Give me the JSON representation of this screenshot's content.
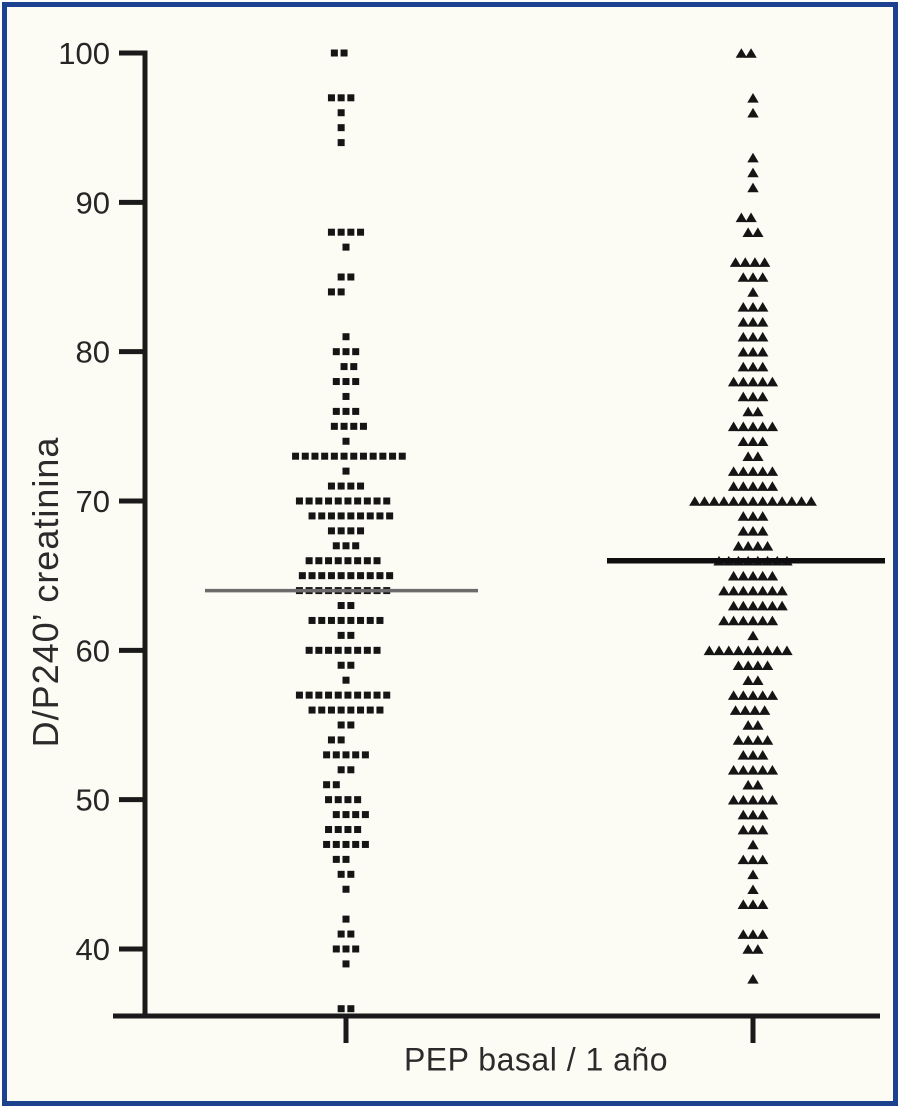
{
  "figure": {
    "border_color": "#1c418f",
    "background_color": "#fcfbf4",
    "ink_color": "#1a1a1a"
  },
  "chart_data": {
    "type": "scatter",
    "variant": "beeswarm-dot-plot",
    "title": "",
    "ylabel": "D/P240’ creatinina",
    "xlabel": "PEP basal / 1 año",
    "ylim": [
      35,
      101
    ],
    "yticks": [
      100,
      90,
      80,
      70,
      60,
      50,
      40
    ],
    "grid": false,
    "legend": "none",
    "series": [
      {
        "name": "PEP basal",
        "marker": "square",
        "color": "#151515",
        "median": 64,
        "median_color": "#6b6b6b",
        "rows_format": "[value, count, row_offset_in_dot_units]",
        "rows": [
          [
            100,
            2,
            -0.7
          ],
          [
            97,
            3,
            -0.5
          ],
          [
            96,
            1,
            -0.5
          ],
          [
            95,
            1,
            -0.5
          ],
          [
            94,
            1,
            -0.5
          ],
          [
            88,
            4,
            0
          ],
          [
            87,
            1,
            0
          ],
          [
            85,
            2,
            0
          ],
          [
            84,
            2,
            -1
          ],
          [
            81,
            1,
            0
          ],
          [
            80,
            3,
            0
          ],
          [
            79,
            2,
            0.3
          ],
          [
            78,
            3,
            0
          ],
          [
            77,
            1,
            0
          ],
          [
            76,
            3,
            0
          ],
          [
            75,
            4,
            0.3
          ],
          [
            74,
            1,
            0
          ],
          [
            73,
            12,
            0.3
          ],
          [
            72,
            1,
            0
          ],
          [
            71,
            4,
            0
          ],
          [
            70,
            10,
            -0.3
          ],
          [
            69,
            9,
            0.5
          ],
          [
            68,
            4,
            0
          ],
          [
            67,
            3,
            0
          ],
          [
            66,
            8,
            -0.3
          ],
          [
            65,
            10,
            0
          ],
          [
            64,
            10,
            -0.3
          ],
          [
            63,
            2,
            0
          ],
          [
            62,
            8,
            0
          ],
          [
            61,
            2,
            0
          ],
          [
            60,
            8,
            -0.3
          ],
          [
            59,
            2,
            0
          ],
          [
            58,
            1,
            0
          ],
          [
            57,
            10,
            -0.3
          ],
          [
            56,
            8,
            0
          ],
          [
            55,
            2,
            0
          ],
          [
            54,
            2,
            -1
          ],
          [
            53,
            5,
            0
          ],
          [
            52,
            2,
            0
          ],
          [
            51,
            2,
            -1.5
          ],
          [
            50,
            4,
            -0.3
          ],
          [
            49,
            4,
            0.5
          ],
          [
            48,
            4,
            -0.3
          ],
          [
            47,
            5,
            0
          ],
          [
            46,
            2,
            -0.5
          ],
          [
            45,
            2,
            0
          ],
          [
            44,
            1,
            0
          ],
          [
            42,
            1,
            0
          ],
          [
            41,
            2,
            0
          ],
          [
            40,
            3,
            0
          ],
          [
            39,
            1,
            0
          ],
          [
            36,
            2,
            0
          ]
        ]
      },
      {
        "name": "PEP 1 año",
        "marker": "triangle",
        "color": "#151515",
        "median": 66,
        "median_color": "#0e0e0e",
        "rows_format": "[value, count, row_offset_in_dot_units]",
        "rows": [
          [
            100,
            2,
            -0.7
          ],
          [
            97,
            1,
            0
          ],
          [
            96,
            1,
            0
          ],
          [
            93,
            1,
            0
          ],
          [
            92,
            1,
            0
          ],
          [
            91,
            1,
            0
          ],
          [
            89,
            2,
            -0.7
          ],
          [
            88,
            2,
            0
          ],
          [
            86,
            4,
            -0.3
          ],
          [
            85,
            3,
            0
          ],
          [
            84,
            1,
            0
          ],
          [
            83,
            3,
            0
          ],
          [
            82,
            3,
            0
          ],
          [
            81,
            3,
            0
          ],
          [
            80,
            3,
            0
          ],
          [
            79,
            3,
            0
          ],
          [
            78,
            5,
            0
          ],
          [
            77,
            3,
            0
          ],
          [
            76,
            2,
            0
          ],
          [
            75,
            5,
            0
          ],
          [
            74,
            3,
            0
          ],
          [
            73,
            2,
            0
          ],
          [
            72,
            5,
            0
          ],
          [
            71,
            5,
            0
          ],
          [
            70,
            13,
            0
          ],
          [
            69,
            3,
            0
          ],
          [
            68,
            3,
            0
          ],
          [
            67,
            4,
            0
          ],
          [
            66,
            8,
            0
          ],
          [
            65,
            5,
            0
          ],
          [
            64,
            7,
            0
          ],
          [
            63,
            6,
            0.5
          ],
          [
            62,
            6,
            -0.5
          ],
          [
            61,
            1,
            0
          ],
          [
            60,
            9,
            -0.5
          ],
          [
            59,
            4,
            0
          ],
          [
            58,
            2,
            0
          ],
          [
            57,
            5,
            0
          ],
          [
            56,
            4,
            -0.3
          ],
          [
            55,
            2,
            0
          ],
          [
            54,
            4,
            0
          ],
          [
            53,
            3,
            0
          ],
          [
            52,
            5,
            0
          ],
          [
            51,
            2,
            0
          ],
          [
            50,
            5,
            0
          ],
          [
            49,
            3,
            0
          ],
          [
            48,
            3,
            0
          ],
          [
            47,
            1,
            0
          ],
          [
            46,
            3,
            0
          ],
          [
            45,
            1,
            0
          ],
          [
            44,
            1,
            0
          ],
          [
            43,
            3,
            0
          ],
          [
            41,
            3,
            0
          ],
          [
            40,
            2,
            0
          ],
          [
            38,
            1,
            0
          ]
        ]
      }
    ]
  }
}
